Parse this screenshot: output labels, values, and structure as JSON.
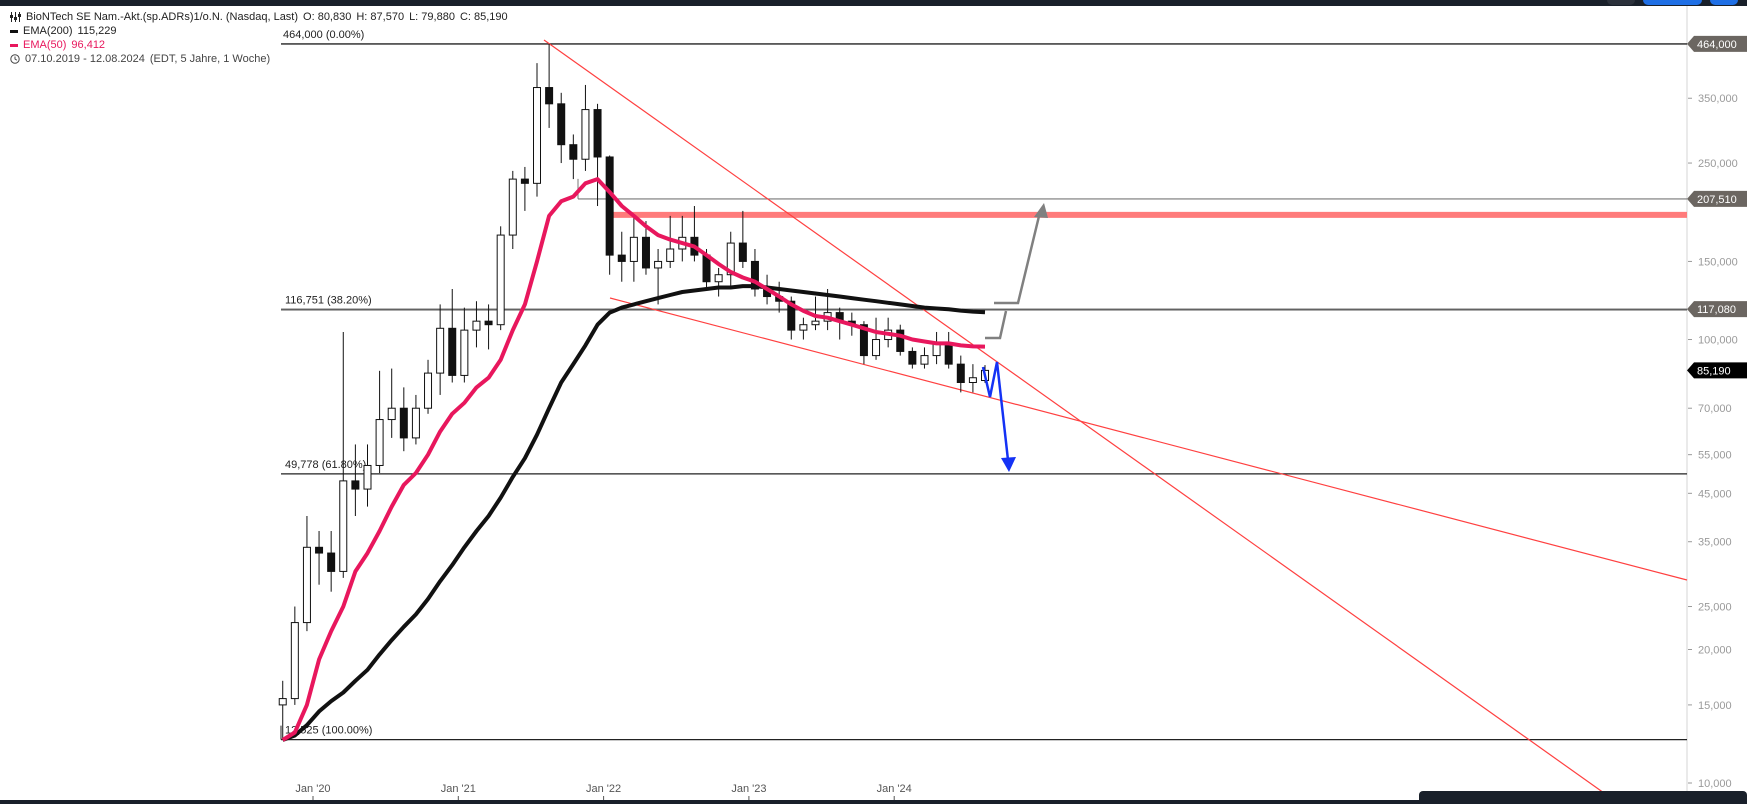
{
  "legend": {
    "title": "BioNTech SE Nam.-Akt.(sp.ADRs)1/o.N. (Nasdaq, Last)",
    "ohlc": {
      "o": "O: 80,830",
      "h": "H: 87,570",
      "l": "L: 79,880",
      "c": "C: 85,190"
    },
    "ema200": {
      "label": "EMA(200)",
      "value": "115,229",
      "color": "#111111"
    },
    "ema50": {
      "label": "EMA(50)",
      "value": "96,412",
      "color": "#e8175d"
    },
    "range": "07.10.2019 - 12.08.2024",
    "range_meta": "(EDT, 5 Jahre, 1 Woche)",
    "icons": [
      "candles-settings-icon",
      "clock-icon"
    ]
  },
  "chart_data": {
    "type": "candlestick",
    "scale": "log",
    "ylim": [
      10,
      500
    ],
    "grid": false,
    "x_ticks": [
      {
        "date": "2020-01",
        "label": "Jan '20"
      },
      {
        "date": "2021-01",
        "label": "Jan '21"
      },
      {
        "date": "2022-01",
        "label": "Jan '22"
      },
      {
        "date": "2023-01",
        "label": "Jan '23"
      },
      {
        "date": "2024-01",
        "label": "Jan '24"
      }
    ],
    "y_ticks": [
      {
        "value": 350,
        "label": "350,000"
      },
      {
        "value": 250,
        "label": "250,000"
      },
      {
        "value": 150,
        "label": "150,000"
      },
      {
        "value": 100,
        "label": "100,000"
      },
      {
        "value": 70,
        "label": "70,000"
      },
      {
        "value": 55,
        "label": "55,000"
      },
      {
        "value": 45,
        "label": "45,000"
      },
      {
        "value": 35,
        "label": "35,000"
      },
      {
        "value": 25,
        "label": "25,000"
      },
      {
        "value": 20,
        "label": "20,000"
      },
      {
        "value": 15,
        "label": "15,000"
      },
      {
        "value": 10,
        "label": "10,000"
      }
    ],
    "price_tags": [
      {
        "value": 464.0,
        "label": "464,000",
        "color": "#6b6661"
      },
      {
        "value": 207.51,
        "label": "207,510",
        "color": "#6b6661"
      },
      {
        "value": 117.08,
        "label": "117,080",
        "color": "#6b6661"
      },
      {
        "value": 85.19,
        "label": "85,190",
        "color": "#000000"
      }
    ],
    "fib_levels": [
      {
        "value": 464.0,
        "label": "464,000 (0.00%)"
      },
      {
        "value": 116.751,
        "label": "116,751 (38.20%)"
      },
      {
        "value": 49.778,
        "label": "49,778 (61.80%)"
      },
      {
        "value": 12.525,
        "label": "12,525 (100.00%)"
      }
    ],
    "resistance_zone": {
      "value": 191,
      "color": "#ff7b7b"
    },
    "candles": [
      [
        "2019-10",
        15,
        17,
        12.5,
        15.5
      ],
      [
        "2019-11",
        15.5,
        25,
        15,
        23
      ],
      [
        "2019-12",
        23,
        40,
        22,
        34
      ],
      [
        "2020-01",
        34,
        37,
        28,
        33
      ],
      [
        "2020-02",
        33,
        37,
        27,
        30
      ],
      [
        "2020-03",
        30,
        104,
        29,
        48
      ],
      [
        "2020-04",
        48,
        58,
        40,
        46
      ],
      [
        "2020-05",
        46,
        58,
        42,
        52
      ],
      [
        "2020-06",
        52,
        85,
        50,
        66
      ],
      [
        "2020-07",
        66,
        86,
        60,
        70
      ],
      [
        "2020-08",
        70,
        78,
        56,
        60
      ],
      [
        "2020-09",
        60,
        75,
        58,
        70
      ],
      [
        "2020-10",
        70,
        90,
        68,
        84
      ],
      [
        "2020-11",
        84,
        120,
        75,
        106
      ],
      [
        "2020-12",
        106,
        130,
        80,
        83
      ],
      [
        "2021-01",
        83,
        118,
        80,
        105
      ],
      [
        "2021-02",
        105,
        122,
        96,
        110
      ],
      [
        "2021-03",
        110,
        120,
        95,
        108
      ],
      [
        "2021-04",
        108,
        180,
        105,
        172
      ],
      [
        "2021-05",
        172,
        240,
        160,
        230
      ],
      [
        "2021-06",
        230,
        245,
        195,
        225
      ],
      [
        "2021-07",
        225,
        420,
        210,
        370
      ],
      [
        "2021-08",
        370,
        464,
        300,
        340
      ],
      [
        "2021-09",
        340,
        360,
        250,
        275
      ],
      [
        "2021-10",
        275,
        290,
        230,
        255
      ],
      [
        "2021-11",
        255,
        375,
        240,
        330
      ],
      [
        "2021-12",
        330,
        340,
        200,
        258
      ],
      [
        "2022-01",
        258,
        260,
        140,
        155
      ],
      [
        "2022-02",
        155,
        175,
        135,
        150
      ],
      [
        "2022-03",
        150,
        190,
        135,
        170
      ],
      [
        "2022-04",
        170,
        185,
        140,
        145
      ],
      [
        "2022-05",
        145,
        160,
        120,
        150
      ],
      [
        "2022-06",
        150,
        190,
        145,
        160
      ],
      [
        "2022-07",
        160,
        190,
        150,
        170
      ],
      [
        "2022-08",
        170,
        200,
        150,
        155
      ],
      [
        "2022-09",
        155,
        160,
        130,
        135
      ],
      [
        "2022-10",
        135,
        145,
        125,
        140
      ],
      [
        "2022-11",
        140,
        175,
        130,
        165
      ],
      [
        "2022-12",
        165,
        195,
        145,
        150
      ],
      [
        "2023-01",
        150,
        160,
        125,
        130
      ],
      [
        "2023-02",
        130,
        140,
        120,
        125
      ],
      [
        "2023-03",
        125,
        135,
        115,
        122
      ],
      [
        "2023-04",
        122,
        125,
        100,
        105
      ],
      [
        "2023-05",
        105,
        112,
        100,
        108
      ],
      [
        "2023-06",
        108,
        125,
        105,
        110
      ],
      [
        "2023-07",
        110,
        130,
        105,
        115
      ],
      [
        "2023-08",
        115,
        118,
        100,
        110
      ],
      [
        "2023-09",
        110,
        115,
        102,
        108
      ],
      [
        "2023-10",
        108,
        110,
        88,
        92
      ],
      [
        "2023-11",
        92,
        112,
        90,
        100
      ],
      [
        "2023-12",
        100,
        112,
        96,
        105
      ],
      [
        "2024-01",
        105,
        108,
        92,
        94
      ],
      [
        "2024-02",
        94,
        96,
        86,
        88
      ],
      [
        "2024-03",
        88,
        96,
        86,
        92
      ],
      [
        "2024-04",
        92,
        104,
        88,
        98
      ],
      [
        "2024-05",
        98,
        104,
        86,
        88
      ],
      [
        "2024-06",
        88,
        92,
        76,
        80
      ],
      [
        "2024-07",
        80,
        88,
        76,
        82
      ],
      [
        "2024-08",
        80.83,
        87.57,
        79.88,
        85.19
      ]
    ],
    "ema50": [
      12.5,
      13,
      15,
      19,
      22,
      25,
      30,
      33,
      37,
      42,
      47,
      50,
      55,
      62,
      68,
      72,
      78,
      82,
      90,
      105,
      120,
      150,
      190,
      205,
      210,
      225,
      230,
      215,
      200,
      190,
      180,
      172,
      168,
      165,
      162,
      155,
      148,
      142,
      138,
      135,
      130,
      125,
      120,
      116,
      113,
      112,
      110,
      108,
      106,
      104,
      103,
      102,
      100,
      99,
      98,
      98,
      97,
      96.5,
      96.412
    ],
    "ema200": [
      12.5,
      12.8,
      13.5,
      14.5,
      15.3,
      16,
      17,
      18,
      19.5,
      21,
      22.5,
      24,
      26,
      28.5,
      31,
      34,
      37,
      40,
      44,
      49,
      54,
      61,
      70,
      80,
      88,
      97,
      108,
      115,
      118,
      120,
      122,
      124,
      126,
      128,
      129,
      130,
      131,
      131,
      132,
      132,
      131,
      130,
      129,
      128,
      127,
      126,
      125,
      124,
      123,
      122,
      121,
      120,
      119,
      118,
      117.5,
      117,
      116.2,
      115.6,
      115.229
    ]
  }
}
